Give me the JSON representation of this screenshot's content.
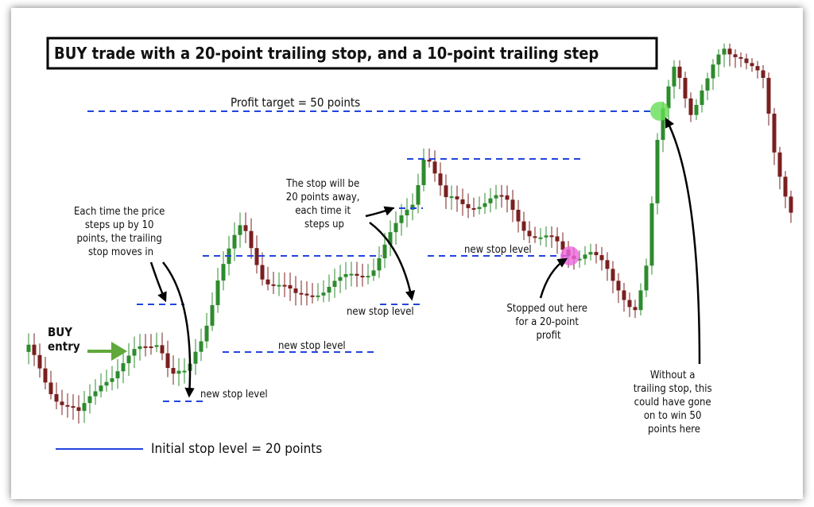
{
  "title": "BUY trade with a 20-point trailing stop, and a 10-point trailing step",
  "profit_target": "Profit target = 50 points",
  "buy_entry": [
    "BUY",
    "entry"
  ],
  "trailing_note": [
    "Each time the price",
    "steps up by 10",
    "points, the trailing",
    "stop moves in"
  ],
  "stop_note": [
    "The stop will be",
    "20 points away,",
    "each time it",
    "steps up"
  ],
  "new_stop_labels": [
    "new stop level",
    "new stop level",
    "new stop level",
    "new stop level"
  ],
  "initial_stop": "Initial stop level = 20 points",
  "stopped_note": [
    "Stopped out here",
    "for a 20-point",
    "profit"
  ],
  "without_note": [
    "Without a",
    "trailing stop, this",
    "could have gone",
    "on to win 50",
    "points here"
  ]
}
